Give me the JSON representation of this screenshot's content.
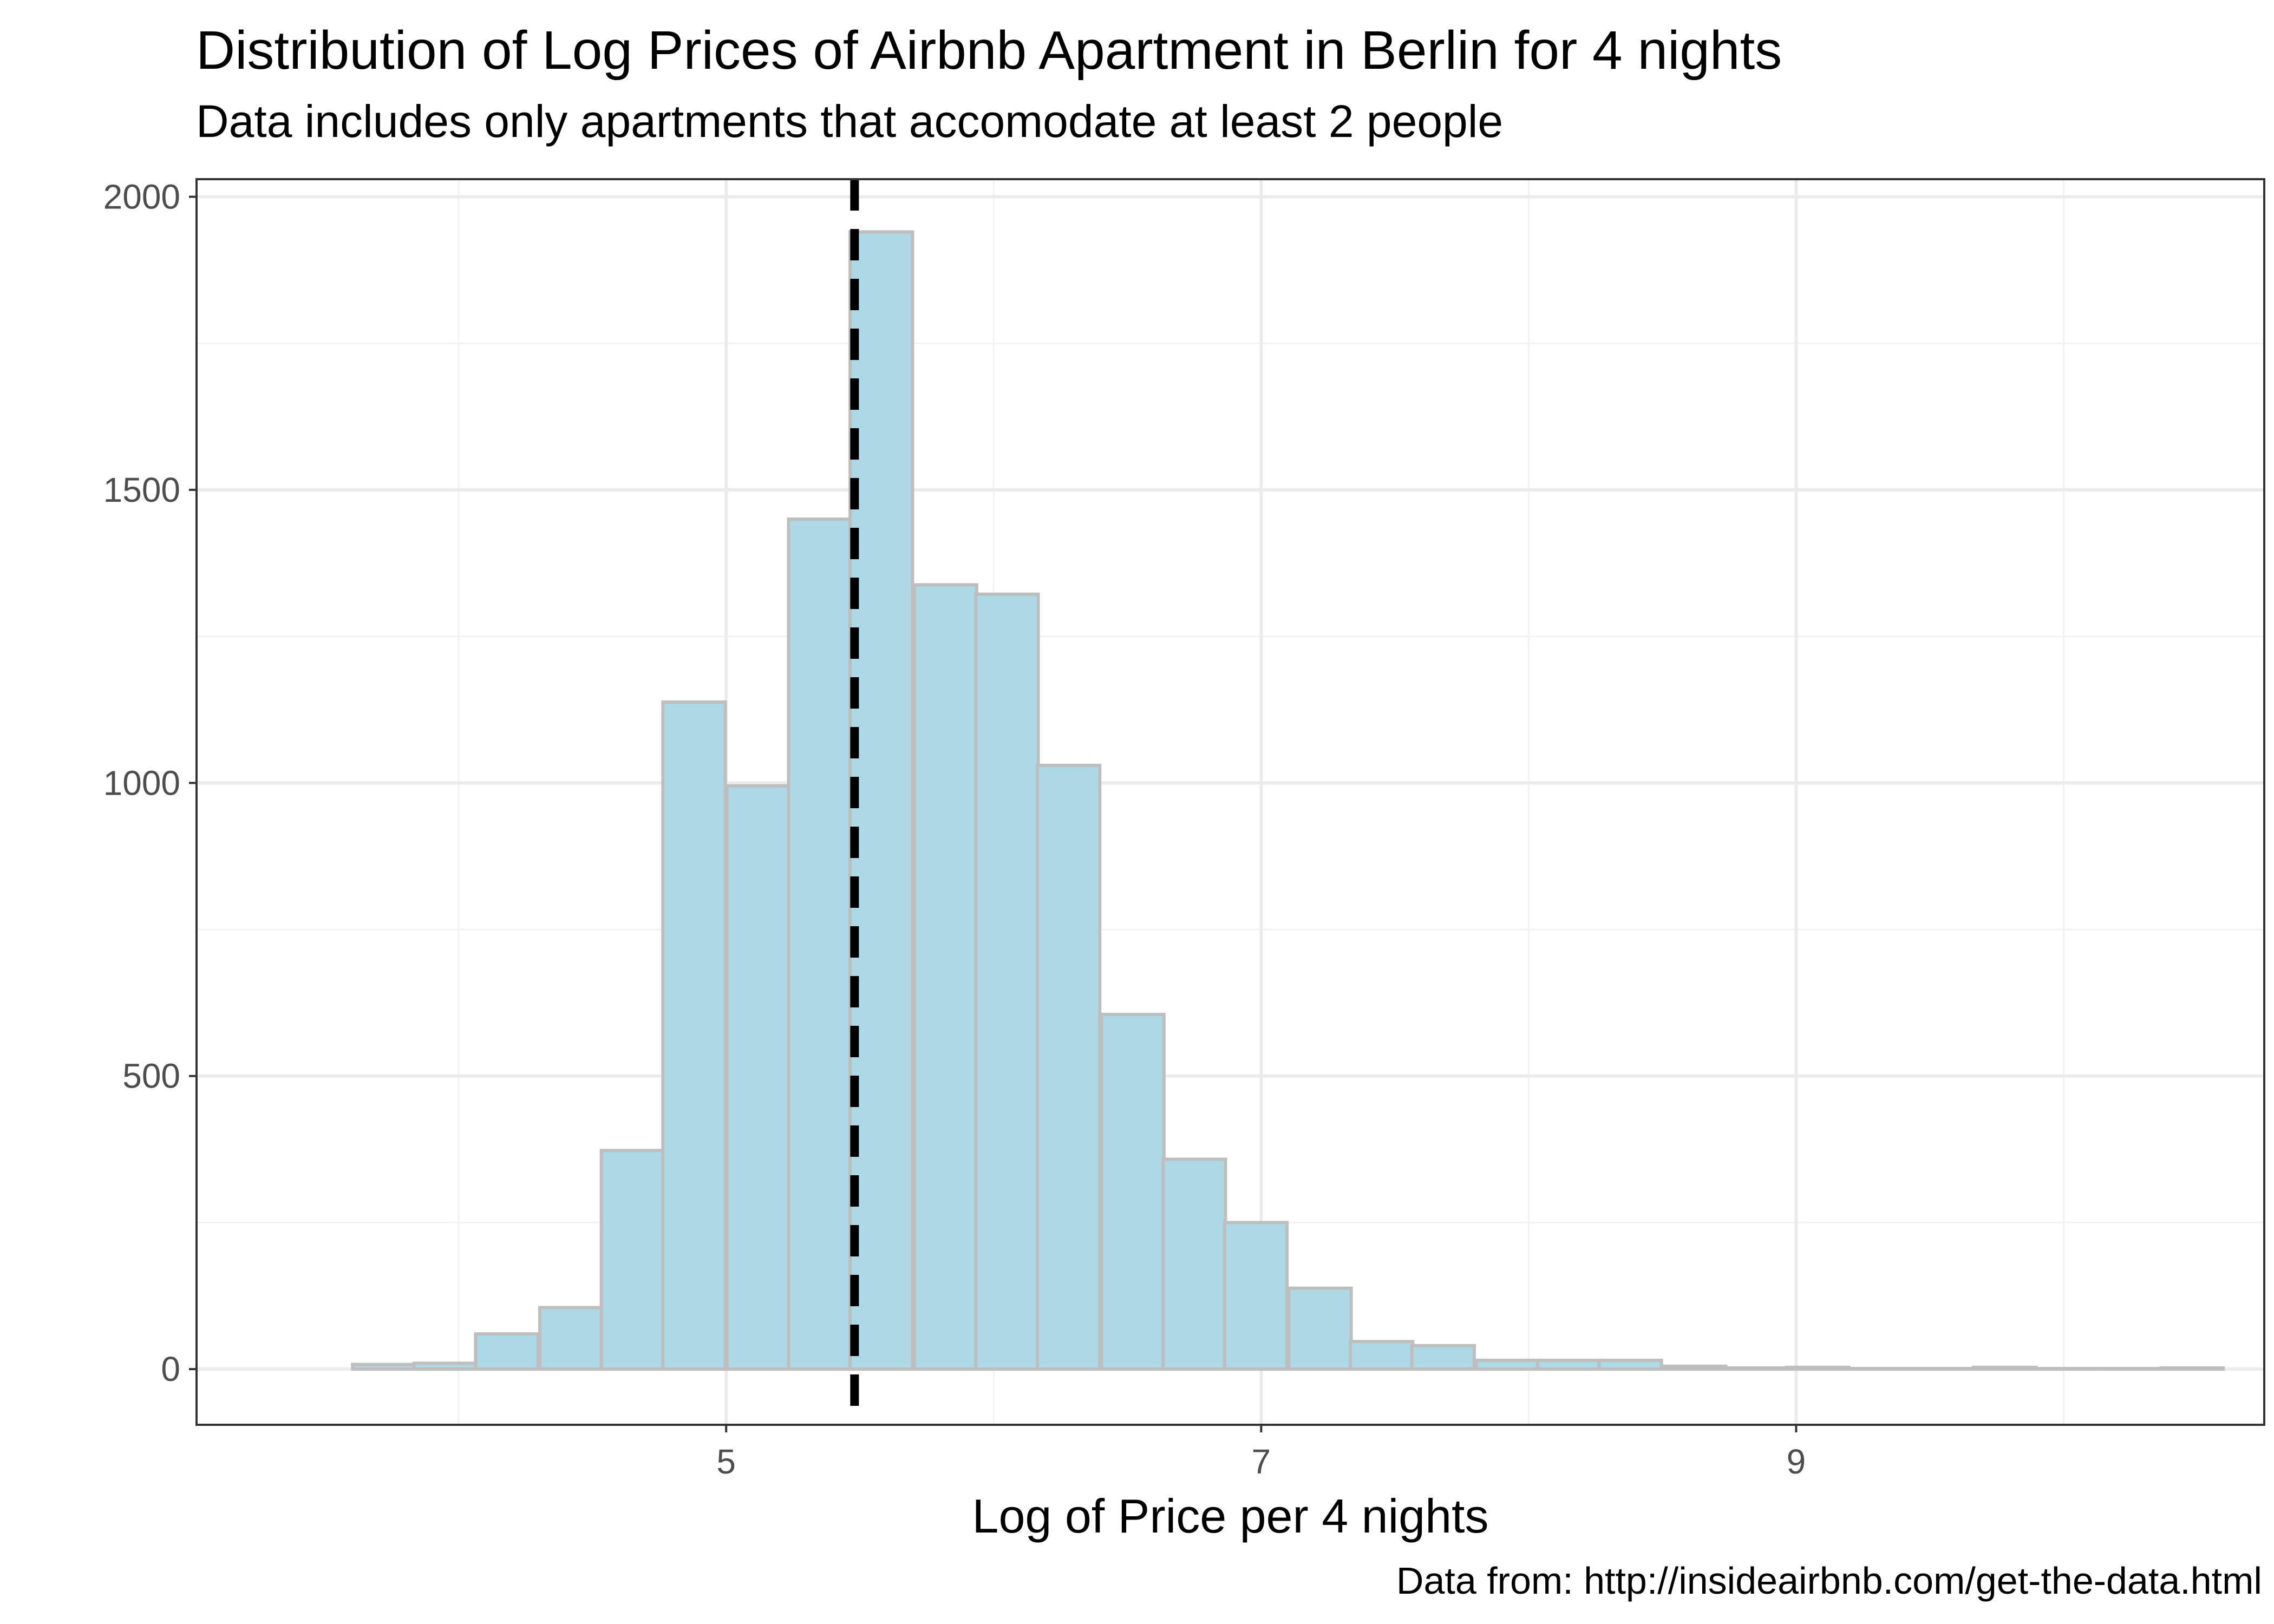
{
  "chart_data": {
    "type": "bar",
    "title": "Distribution of Log Prices of Airbnb Apartment in Berlin for 4 nights",
    "subtitle": "Data includes only apartments that accomodate at least 2 people",
    "caption": "Data from: http://insideairbnb.com/get-the-data.html",
    "xlabel": "Log of Price per 4 nights",
    "ylabel": "",
    "xlim": [
      3.02,
      10.75
    ],
    "ylim": [
      -95,
      2030
    ],
    "x_ticks": [
      5,
      7,
      9
    ],
    "x_minor_ticks": [
      4,
      6,
      8,
      10
    ],
    "y_ticks": [
      0,
      500,
      1000,
      1500,
      2000
    ],
    "y_minor_ticks": [
      250,
      750,
      1250,
      1750
    ],
    "bin_width": 0.2333,
    "bins": [
      {
        "x": 3.72,
        "count": 8
      },
      {
        "x": 3.95,
        "count": 10
      },
      {
        "x": 4.18,
        "count": 60
      },
      {
        "x": 4.42,
        "count": 105
      },
      {
        "x": 4.65,
        "count": 373
      },
      {
        "x": 4.88,
        "count": 1138
      },
      {
        "x": 5.12,
        "count": 995
      },
      {
        "x": 5.35,
        "count": 1450
      },
      {
        "x": 5.58,
        "count": 1940
      },
      {
        "x": 5.82,
        "count": 1338
      },
      {
        "x": 6.05,
        "count": 1322
      },
      {
        "x": 6.28,
        "count": 1030
      },
      {
        "x": 6.52,
        "count": 605
      },
      {
        "x": 6.75,
        "count": 358
      },
      {
        "x": 6.98,
        "count": 250
      },
      {
        "x": 7.22,
        "count": 138
      },
      {
        "x": 7.45,
        "count": 47
      },
      {
        "x": 7.68,
        "count": 40
      },
      {
        "x": 7.92,
        "count": 15
      },
      {
        "x": 8.15,
        "count": 15
      },
      {
        "x": 8.38,
        "count": 15
      },
      {
        "x": 8.62,
        "count": 5
      },
      {
        "x": 8.85,
        "count": 2
      },
      {
        "x": 9.08,
        "count": 3
      },
      {
        "x": 9.32,
        "count": 1
      },
      {
        "x": 9.55,
        "count": 1
      },
      {
        "x": 9.78,
        "count": 3
      },
      {
        "x": 10.02,
        "count": 1
      },
      {
        "x": 10.25,
        "count": 1
      },
      {
        "x": 10.48,
        "count": 2
      }
    ],
    "vline": {
      "x": 5.48,
      "style": "dashed",
      "color": "#000000"
    },
    "colors": {
      "bar_fill": "#add8e6",
      "bar_stroke": "#bebebe",
      "grid_major": "#ebebeb",
      "grid_minor": "#f2f2f2",
      "panel_border": "#333333",
      "tick_text": "#4d4d4d"
    },
    "grid": true,
    "legend": "none"
  }
}
